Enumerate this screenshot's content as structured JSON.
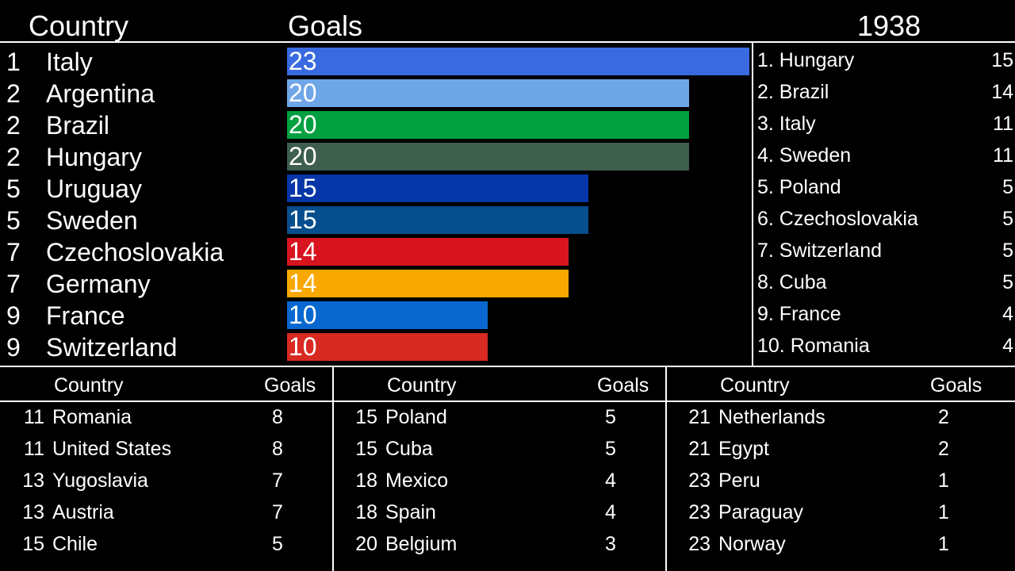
{
  "header": {
    "country_label": "Country",
    "goals_label": "Goals",
    "year": "1938"
  },
  "chart_data": {
    "type": "bar",
    "orientation": "horizontal",
    "xlim": [
      0,
      23
    ],
    "categories": [
      "Italy",
      "Argentina",
      "Brazil",
      "Hungary",
      "Uruguay",
      "Sweden",
      "Czechoslovakia",
      "Germany",
      "France",
      "Switzerland"
    ],
    "ranks": [
      "1",
      "2",
      "2",
      "2",
      "5",
      "5",
      "7",
      "7",
      "9",
      "9"
    ],
    "values": [
      23,
      20,
      20,
      20,
      15,
      15,
      14,
      14,
      10,
      10
    ],
    "colors": [
      "#3a6ae0",
      "#6fa6e8",
      "#00a040",
      "#3e5e4e",
      "#0636a8",
      "#064e8e",
      "#d8141e",
      "#f8a800",
      "#0868d0",
      "#d82a22"
    ]
  },
  "year_table": [
    {
      "name": "1. Hungary",
      "goals": "15"
    },
    {
      "name": "2. Brazil",
      "goals": "14"
    },
    {
      "name": "3. Italy",
      "goals": "11"
    },
    {
      "name": "4. Sweden",
      "goals": "11"
    },
    {
      "name": "5. Poland",
      "goals": "5"
    },
    {
      "name": "6. Czechoslovakia",
      "goals": "5"
    },
    {
      "name": "7. Switzerland",
      "goals": "5"
    },
    {
      "name": "8. Cuba",
      "goals": "5"
    },
    {
      "name": "9. France",
      "goals": "4"
    },
    {
      "name": "10. Romania",
      "goals": "4"
    }
  ],
  "lower_tables": [
    {
      "country_label": "Country",
      "goals_label": "Goals",
      "rows": [
        {
          "rank": "11",
          "name": "Romania",
          "goals": "8"
        },
        {
          "rank": "11",
          "name": "United States",
          "goals": "8"
        },
        {
          "rank": "13",
          "name": "Yugoslavia",
          "goals": "7"
        },
        {
          "rank": "13",
          "name": "Austria",
          "goals": "7"
        },
        {
          "rank": "15",
          "name": "Chile",
          "goals": "5"
        }
      ]
    },
    {
      "country_label": "Country",
      "goals_label": "Goals",
      "rows": [
        {
          "rank": "15",
          "name": "Poland",
          "goals": "5"
        },
        {
          "rank": "15",
          "name": "Cuba",
          "goals": "5"
        },
        {
          "rank": "18",
          "name": "Mexico",
          "goals": "4"
        },
        {
          "rank": "18",
          "name": "Spain",
          "goals": "4"
        },
        {
          "rank": "20",
          "name": "Belgium",
          "goals": "3"
        }
      ]
    },
    {
      "country_label": "Country",
      "goals_label": "Goals",
      "rows": [
        {
          "rank": "21",
          "name": "Netherlands",
          "goals": "2"
        },
        {
          "rank": "21",
          "name": "Egypt",
          "goals": "2"
        },
        {
          "rank": "23",
          "name": "Peru",
          "goals": "1"
        },
        {
          "rank": "23",
          "name": "Paraguay",
          "goals": "1"
        },
        {
          "rank": "23",
          "name": "Norway",
          "goals": "1"
        }
      ]
    }
  ]
}
